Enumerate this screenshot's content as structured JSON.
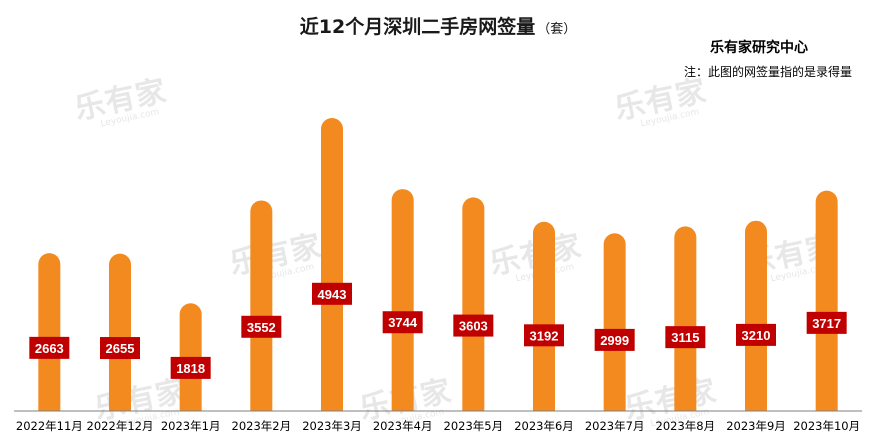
{
  "title": "近12个月深圳二手房网签量",
  "title_unit": "（套）",
  "source": "乐有家研究中心",
  "note": "注：此图的网签量指的是录得量",
  "watermark": {
    "text": "乐有家",
    "sub": "Leyoujia.com"
  },
  "colors": {
    "bar": "#f28a1f",
    "label_bg": "#c00000",
    "label_text": "#ffffff",
    "axis": "#7f7f7f"
  },
  "chart_data": {
    "type": "bar",
    "categories": [
      "2022年11月",
      "2022年12月",
      "2023年1月",
      "2023年2月",
      "2023年3月",
      "2023年4月",
      "2023年5月",
      "2023年6月",
      "2023年7月",
      "2023年8月",
      "2023年9月",
      "2023年10月"
    ],
    "values": [
      2663,
      2655,
      1818,
      3552,
      4943,
      3744,
      3603,
      3192,
      2999,
      3115,
      3210,
      3717
    ],
    "title": "近12个月深圳二手房网签量",
    "xlabel": "",
    "ylabel": "",
    "ylim": [
      0,
      5000
    ],
    "grid": false,
    "legend": "none"
  }
}
